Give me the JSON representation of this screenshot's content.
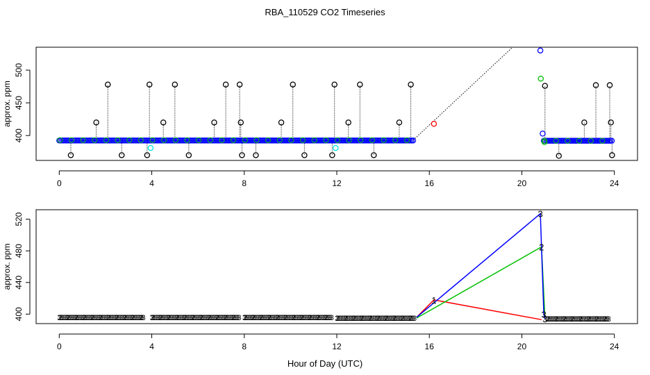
{
  "figure": {
    "title": "RBA_110529  CO2 Timeseries",
    "xlabel": "Hour of Day (UTC)"
  },
  "colors": {
    "black": "#000000",
    "blue": "#0000ff",
    "green": "#00c000",
    "cyan": "#00e5e5",
    "red": "#ff0000"
  },
  "chart_data": [
    {
      "type": "scatter",
      "title": "",
      "xlabel": "",
      "ylabel": "approx. ppm",
      "xlim": [
        -1,
        25
      ],
      "ylim": [
        362,
        535
      ],
      "xticks": [
        0,
        4,
        8,
        12,
        16,
        20,
        24
      ],
      "yticks": [
        400,
        450,
        500
      ],
      "baseline_segments": [
        {
          "x_start": 0.0,
          "x_end": 15.3,
          "y": 393
        },
        {
          "x_start": 20.95,
          "x_end": 23.9,
          "y": 392
        }
      ],
      "gap_line": {
        "x": [
          15.3,
          19.6
        ],
        "y": [
          393,
          535
        ],
        "style": "dotted"
      },
      "black_spikes": {
        "x": [
          0.5,
          1.6,
          2.1,
          2.7,
          3.8,
          3.9,
          4.5,
          5.0,
          5.6,
          6.7,
          7.2,
          7.8,
          7.85,
          7.9,
          8.5,
          9.6,
          10.1,
          10.6,
          11.8,
          11.9,
          12.5,
          13.0,
          13.6,
          14.7,
          15.2,
          21.0,
          21.6,
          22.7,
          23.2,
          23.8,
          23.85,
          23.9
        ],
        "y": [
          370,
          420,
          478,
          370,
          370,
          478,
          420,
          478,
          370,
          420,
          478,
          478,
          420,
          370,
          370,
          420,
          478,
          370,
          370,
          478,
          420,
          478,
          370,
          420,
          478,
          476,
          369,
          420,
          477,
          477,
          420,
          370
        ]
      },
      "blue_points": {
        "x": [
          20.8,
          20.9
        ],
        "y": [
          530,
          403
        ]
      },
      "green_points": {
        "x": [
          20.82,
          20.98
        ],
        "y": [
          487,
          390
        ]
      },
      "cyan_points": {
        "x": [
          3.95,
          11.95
        ],
        "y": [
          381,
          381
        ]
      },
      "red_points": {
        "x": [
          16.2
        ],
        "y": [
          418
        ]
      }
    },
    {
      "type": "line",
      "title": "",
      "xlabel": "Hour of Day (UTC)",
      "ylabel": "approx. ppm",
      "xlim": [
        -1,
        25
      ],
      "ylim": [
        388,
        532
      ],
      "xticks": [
        0,
        4,
        8,
        12,
        16,
        20,
        24
      ],
      "yticks": [
        400,
        440,
        480,
        520
      ],
      "baseline_segments": [
        {
          "x_start": 0.0,
          "x_end": 3.7,
          "y": 396
        },
        {
          "x_start": 4.0,
          "x_end": 7.8,
          "y": 396
        },
        {
          "x_start": 8.0,
          "x_end": 11.8,
          "y": 396
        },
        {
          "x_start": 12.0,
          "x_end": 15.4,
          "y": 395
        },
        {
          "x_start": 21.1,
          "x_end": 23.8,
          "y": 394
        }
      ],
      "series": [
        {
          "name": "1",
          "color": "red",
          "x": [
            15.45,
            16.2,
            20.85
          ],
          "y": [
            396,
            418,
            393
          ]
        },
        {
          "name": "2",
          "color": "green",
          "x": [
            15.45,
            20.85,
            21.0
          ],
          "y": [
            395,
            485,
            394
          ]
        },
        {
          "name": "3",
          "color": "blue",
          "x": [
            15.45,
            20.8,
            20.95,
            21.0
          ],
          "y": [
            396,
            527,
            400,
            394
          ]
        }
      ],
      "labels": [
        {
          "text": "1",
          "x": 16.2,
          "y": 418,
          "color": "red"
        },
        {
          "text": "3",
          "x": 20.8,
          "y": 527,
          "color": "blue"
        },
        {
          "text": "2",
          "x": 20.85,
          "y": 485,
          "color": "green"
        },
        {
          "text": "3",
          "x": 20.95,
          "y": 400,
          "color": "blue"
        },
        {
          "text": "3",
          "x": 21.0,
          "y": 394,
          "color": "blue"
        }
      ]
    }
  ]
}
